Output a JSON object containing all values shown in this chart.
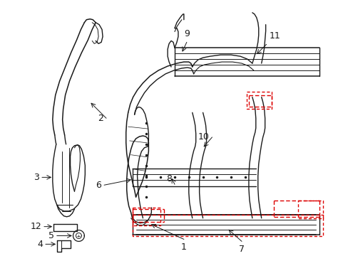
{
  "background_color": "#ffffff",
  "line_color": "#1a1a1a",
  "red_dash_color": "#dd0000",
  "figsize": [
    4.89,
    3.6
  ],
  "dpi": 100
}
